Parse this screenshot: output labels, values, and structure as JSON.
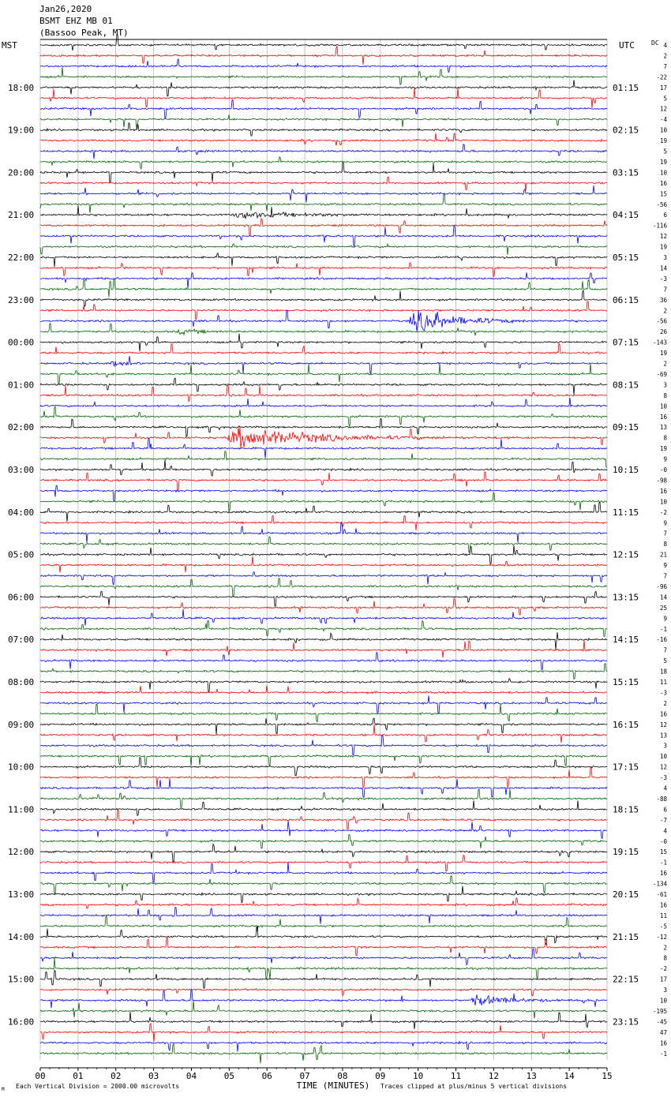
{
  "header": {
    "date": "Jan26,2020",
    "station": "BSMT EHZ MB 01",
    "location": "(Bassoo Peak, MT)",
    "left_zone": "MST",
    "right_zone": "UTC",
    "dc_label": "DC"
  },
  "footer": {
    "scale_note": "Each Vertical Division = 2000.00 microvolts",
    "clip_note": "Traces clipped at plus/minus 5 vertical divisions",
    "corner_mark": "M"
  },
  "colors": {
    "trace_cycle": [
      "#000000",
      "#ff0000",
      "#0000ff",
      "#006400"
    ],
    "grid": "#a0a0a0",
    "background": "#ffffff"
  },
  "chart_data": {
    "type": "line",
    "title": "BSMT EHZ MB 01",
    "xlabel": "TIME (MINUTES)",
    "ylabel": "",
    "xlim": [
      0,
      15
    ],
    "x_ticks": [
      "00",
      "01",
      "02",
      "03",
      "04",
      "05",
      "06",
      "07",
      "08",
      "09",
      "10",
      "11",
      "12",
      "13",
      "14",
      "15"
    ],
    "trace_count": 96,
    "trace_minutes": 15,
    "left_hour_labels": [
      {
        "trace": 4,
        "label": "18:00"
      },
      {
        "trace": 8,
        "label": "19:00"
      },
      {
        "trace": 12,
        "label": "20:00"
      },
      {
        "trace": 16,
        "label": "21:00"
      },
      {
        "trace": 20,
        "label": "22:00"
      },
      {
        "trace": 24,
        "label": "23:00"
      },
      {
        "trace": 28,
        "label": "00:00"
      },
      {
        "trace": 32,
        "label": "01:00"
      },
      {
        "trace": 36,
        "label": "02:00"
      },
      {
        "trace": 40,
        "label": "03:00"
      },
      {
        "trace": 44,
        "label": "04:00"
      },
      {
        "trace": 48,
        "label": "05:00"
      },
      {
        "trace": 52,
        "label": "06:00"
      },
      {
        "trace": 56,
        "label": "07:00"
      },
      {
        "trace": 60,
        "label": "08:00"
      },
      {
        "trace": 64,
        "label": "09:00"
      },
      {
        "trace": 68,
        "label": "10:00"
      },
      {
        "trace": 72,
        "label": "11:00"
      },
      {
        "trace": 76,
        "label": "12:00"
      },
      {
        "trace": 80,
        "label": "13:00"
      },
      {
        "trace": 84,
        "label": "14:00"
      },
      {
        "trace": 88,
        "label": "15:00"
      },
      {
        "trace": 92,
        "label": "16:00"
      }
    ],
    "right_hour_labels": [
      {
        "trace": 4,
        "label": "01:15"
      },
      {
        "trace": 8,
        "label": "02:15"
      },
      {
        "trace": 12,
        "label": "03:15"
      },
      {
        "trace": 16,
        "label": "04:15"
      },
      {
        "trace": 20,
        "label": "05:15"
      },
      {
        "trace": 24,
        "label": "06:15"
      },
      {
        "trace": 28,
        "label": "07:15"
      },
      {
        "trace": 32,
        "label": "08:15"
      },
      {
        "trace": 36,
        "label": "09:15"
      },
      {
        "trace": 40,
        "label": "10:15"
      },
      {
        "trace": 44,
        "label": "11:15"
      },
      {
        "trace": 48,
        "label": "12:15"
      },
      {
        "trace": 52,
        "label": "13:15"
      },
      {
        "trace": 56,
        "label": "14:15"
      },
      {
        "trace": 60,
        "label": "15:15"
      },
      {
        "trace": 64,
        "label": "16:15"
      },
      {
        "trace": 68,
        "label": "17:15"
      },
      {
        "trace": 72,
        "label": "18:15"
      },
      {
        "trace": 76,
        "label": "19:15"
      },
      {
        "trace": 80,
        "label": "20:15"
      },
      {
        "trace": 84,
        "label": "21:15"
      },
      {
        "trace": 88,
        "label": "22:15"
      },
      {
        "trace": 92,
        "label": "23:15"
      }
    ],
    "dc_offsets": [
      "4",
      "2",
      "7",
      "-22",
      "17",
      "5",
      "12",
      "-4",
      "10",
      "19",
      "5",
      "19",
      "10",
      "16",
      "15",
      "-56",
      "6",
      "-116",
      "12",
      "19",
      "3",
      "14",
      "-3",
      "7",
      "36",
      "2",
      "-56",
      "26",
      "-143",
      "19",
      "2",
      "-69",
      "3",
      "8",
      "10",
      "16",
      "13",
      "8",
      "19",
      "9",
      "-0",
      "-98",
      "16",
      "10",
      "-2",
      "9",
      "7",
      "8",
      "21",
      "9",
      "7",
      "-96",
      "14",
      "25",
      "9",
      "-1",
      "-16",
      "7",
      "5",
      "18",
      "11",
      "-3",
      "2",
      "16",
      "12",
      "13",
      "3",
      "10",
      "12",
      "-3",
      "4",
      "-88",
      "6",
      "-7",
      "4",
      "-0",
      "15",
      "-1",
      "16",
      "-134",
      "-61",
      "16",
      "11",
      "-5",
      "-12",
      "2",
      "8",
      "-2",
      "17",
      "3",
      "10",
      "-195",
      "-45",
      "47",
      "16",
      "-1"
    ],
    "events": [
      {
        "trace": 16,
        "start_min": 5.05,
        "duration_min": 6.0,
        "peak_div": 1.5
      },
      {
        "trace": 26,
        "start_min": 9.72,
        "duration_min": 4.5,
        "peak_div": 5.0
      },
      {
        "trace": 27,
        "start_min": 3.6,
        "duration_min": 2.5,
        "peak_div": 1.0
      },
      {
        "trace": 30,
        "start_min": 1.8,
        "duration_min": 2.4,
        "peak_div": 0.9
      },
      {
        "trace": 37,
        "start_min": 4.9,
        "duration_min": 8.0,
        "peak_div": 5.0
      },
      {
        "trace": 60,
        "start_min": 11.1,
        "duration_min": 0.4,
        "peak_div": 0.9
      },
      {
        "trace": 90,
        "start_min": 11.4,
        "duration_min": 3.5,
        "peak_div": 2.5
      }
    ]
  }
}
